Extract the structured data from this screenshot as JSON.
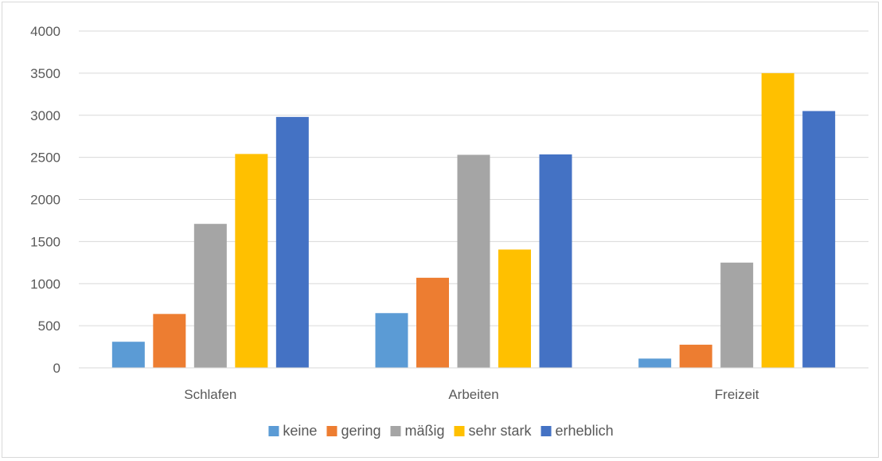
{
  "chart_data": {
    "type": "bar",
    "categories": [
      "Schlafen",
      "Arbeiten",
      "Freizeit"
    ],
    "series": [
      {
        "name": "keine",
        "color": "#5b9bd5",
        "values": [
          310,
          650,
          110
        ]
      },
      {
        "name": "gering",
        "color": "#ed7d31",
        "values": [
          640,
          1070,
          275
        ]
      },
      {
        "name": "mäßig",
        "color": "#a5a5a5",
        "values": [
          1710,
          2530,
          1250
        ]
      },
      {
        "name": "sehr stark",
        "color": "#ffc000",
        "values": [
          2540,
          1405,
          3500
        ]
      },
      {
        "name": "erheblich",
        "color": "#4472c4",
        "values": [
          2980,
          2535,
          3050
        ]
      }
    ],
    "title": "",
    "xlabel": "",
    "ylabel": "",
    "ylim": [
      0,
      4000
    ],
    "yticks": [
      0,
      500,
      1000,
      1500,
      2000,
      2500,
      3000,
      3500,
      4000
    ],
    "grid": true,
    "legend_position": "bottom"
  }
}
